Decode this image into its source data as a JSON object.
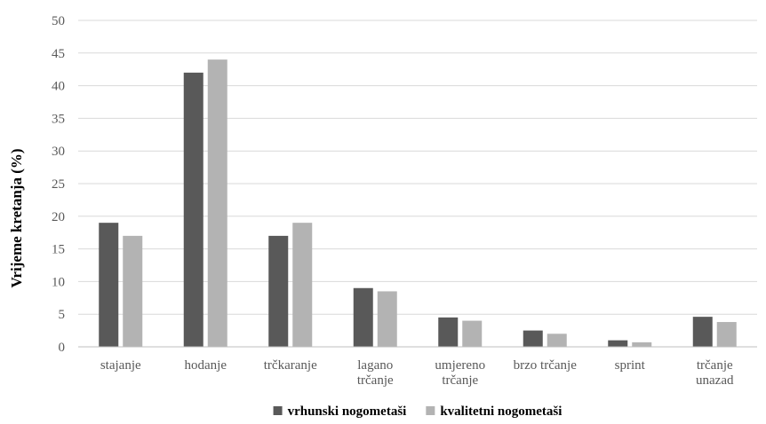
{
  "chart_data": {
    "type": "bar",
    "title": "",
    "xlabel": "",
    "ylabel": "Vrijeme kretanja (%)",
    "ylim": [
      0,
      50
    ],
    "yticks": [
      0,
      5,
      10,
      15,
      20,
      25,
      30,
      35,
      40,
      45,
      50
    ],
    "grid": true,
    "legend_position": "bottom",
    "categories": [
      [
        "stajanje"
      ],
      [
        "hodanje"
      ],
      [
        "trčkaranje"
      ],
      [
        "lagano",
        "trčanje"
      ],
      [
        "umjereno",
        "trčanje"
      ],
      [
        "brzo trčanje"
      ],
      [
        "sprint"
      ],
      [
        "trčanje",
        "unazad"
      ]
    ],
    "series": [
      {
        "name": "vrhunski nogometaši",
        "color": "#595959",
        "values": [
          19,
          42,
          17,
          9,
          4.5,
          2.5,
          1,
          4.6
        ]
      },
      {
        "name": "kvalitetni nogometaši",
        "color": "#b3b3b3",
        "values": [
          17,
          44,
          19,
          8.5,
          4,
          2,
          0.7,
          3.8
        ]
      }
    ]
  }
}
